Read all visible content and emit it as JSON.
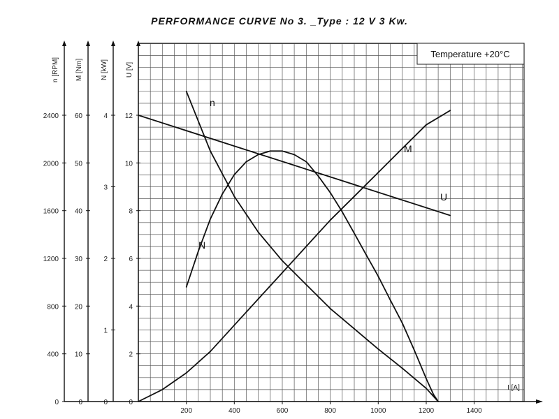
{
  "chart_data": {
    "type": "line",
    "title": "PERFORMANCE CURVE No 3. _Type : 12 V 3 Kw.",
    "annotation": "Temperature +20°C",
    "grid": true,
    "x_axis": {
      "label": "I [A]",
      "range": [
        0,
        1300
      ],
      "ticks": [
        "200",
        "400",
        "600",
        "800",
        "1000",
        "1200",
        "1400"
      ],
      "tick_values": [
        200,
        400,
        600,
        800,
        1000,
        1200,
        1400
      ]
    },
    "y_axes": [
      {
        "id": "n",
        "label": "n [RPM]",
        "range": [
          0,
          2400
        ],
        "ticks": [
          "0",
          "400",
          "800",
          "1200",
          "1600",
          "2000",
          "2400"
        ],
        "tick_values": [
          0,
          400,
          800,
          1200,
          1600,
          2000,
          2400
        ]
      },
      {
        "id": "M",
        "label": "M [Nm]",
        "range": [
          0,
          60
        ],
        "ticks": [
          "0",
          "10",
          "20",
          "30",
          "40",
          "50",
          "60"
        ],
        "tick_values": [
          0,
          10,
          20,
          30,
          40,
          50,
          60
        ]
      },
      {
        "id": "N",
        "label": "N [kW]",
        "range": [
          0,
          4
        ],
        "ticks": [
          "0",
          "1",
          "2",
          "3",
          "4"
        ],
        "tick_values": [
          0,
          1,
          2,
          3,
          4
        ]
      },
      {
        "id": "U",
        "label": "U [V]",
        "range": [
          0,
          12
        ],
        "ticks": [
          "0",
          "2",
          "4",
          "6",
          "8",
          "10",
          "12"
        ],
        "tick_values": [
          0,
          2,
          4,
          6,
          8,
          10,
          12
        ]
      }
    ],
    "series": [
      {
        "name": "n",
        "axis": "n",
        "x": [
          200,
          300,
          400,
          500,
          600,
          700,
          800,
          900,
          1000,
          1100,
          1200,
          1250
        ],
        "values": [
          2600,
          2100,
          1720,
          1420,
          1180,
          980,
          780,
          610,
          440,
          280,
          110,
          0
        ]
      },
      {
        "name": "M",
        "axis": "M",
        "x": [
          0,
          100,
          200,
          300,
          400,
          500,
          600,
          700,
          800,
          900,
          1000,
          1100,
          1200,
          1300
        ],
        "values": [
          0,
          2.5,
          6,
          10.5,
          16,
          21.5,
          27,
          32.5,
          38,
          43,
          48,
          53,
          58,
          61
        ]
      },
      {
        "name": "N",
        "axis": "N",
        "x": [
          200,
          250,
          300,
          350,
          400,
          450,
          500,
          550,
          600,
          650,
          700,
          750,
          800,
          850,
          900,
          950,
          1000,
          1050,
          1100,
          1150,
          1200,
          1230,
          1250
        ],
        "values": [
          1.6,
          2.1,
          2.55,
          2.9,
          3.17,
          3.35,
          3.45,
          3.5,
          3.5,
          3.45,
          3.35,
          3.15,
          2.92,
          2.65,
          2.35,
          2.05,
          1.75,
          1.42,
          1.1,
          0.72,
          0.32,
          0.1,
          0
        ]
      },
      {
        "name": "U",
        "axis": "U",
        "x": [
          0,
          1300
        ],
        "values": [
          12,
          7.8
        ]
      }
    ]
  }
}
